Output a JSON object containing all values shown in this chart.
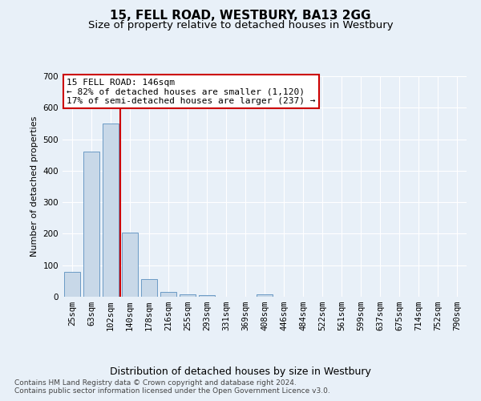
{
  "title": "15, FELL ROAD, WESTBURY, BA13 2GG",
  "subtitle": "Size of property relative to detached houses in Westbury",
  "xlabel": "Distribution of detached houses by size in Westbury",
  "ylabel": "Number of detached properties",
  "bar_labels": [
    "25sqm",
    "63sqm",
    "102sqm",
    "140sqm",
    "178sqm",
    "216sqm",
    "255sqm",
    "293sqm",
    "331sqm",
    "369sqm",
    "408sqm",
    "446sqm",
    "484sqm",
    "522sqm",
    "561sqm",
    "599sqm",
    "637sqm",
    "675sqm",
    "714sqm",
    "752sqm",
    "790sqm"
  ],
  "bar_values": [
    80,
    462,
    549,
    203,
    57,
    15,
    7,
    5,
    0,
    0,
    8,
    0,
    0,
    0,
    0,
    0,
    0,
    0,
    0,
    0,
    0
  ],
  "bar_color": "#c8d8e8",
  "bar_edge_color": "#5a8fbf",
  "vline_color": "#cc0000",
  "annotation_text": "15 FELL ROAD: 146sqm\n← 82% of detached houses are smaller (1,120)\n17% of semi-detached houses are larger (237) →",
  "annotation_box_color": "#ffffff",
  "annotation_box_edge": "#cc0000",
  "ylim": [
    0,
    700
  ],
  "yticks": [
    0,
    100,
    200,
    300,
    400,
    500,
    600,
    700
  ],
  "footer_text": "Contains HM Land Registry data © Crown copyright and database right 2024.\nContains public sector information licensed under the Open Government Licence v3.0.",
  "bg_color": "#e8f0f8",
  "grid_color": "#ffffff",
  "title_fontsize": 11,
  "subtitle_fontsize": 9.5,
  "xlabel_fontsize": 9,
  "ylabel_fontsize": 8,
  "tick_fontsize": 7.5,
  "footer_fontsize": 6.5,
  "ann_fontsize": 8
}
